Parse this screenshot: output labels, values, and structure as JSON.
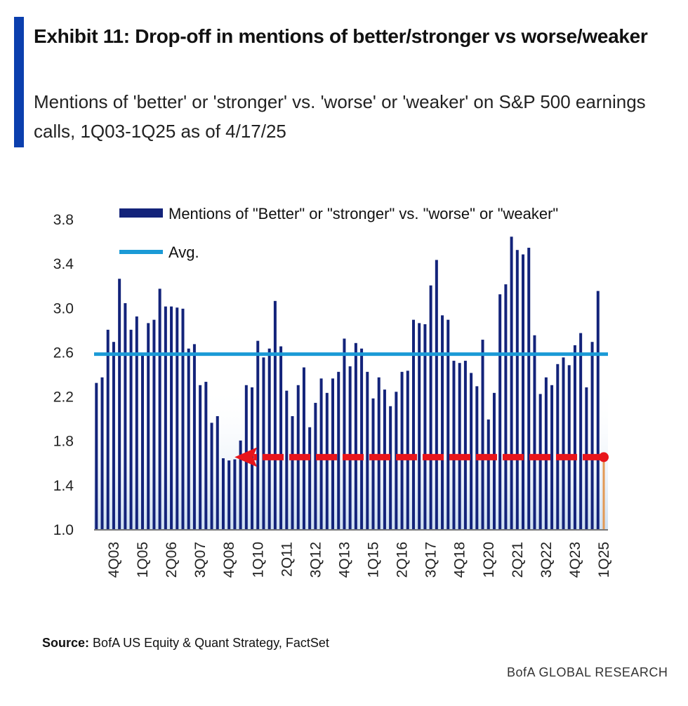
{
  "header": {
    "title": "Exhibit 11: Drop-off in mentions of better/stronger vs worse/weaker",
    "subtitle": "Mentions of 'better' or 'stronger' vs. 'worse' or 'weaker' on S&P 500 earnings calls, 1Q03-1Q25 as of 4/17/25"
  },
  "footer": {
    "source_label": "Source:",
    "source_text": "BofA US Equity & Quant Strategy, FactSet",
    "brand": "BofA GLOBAL RESEARCH"
  },
  "colors": {
    "accent": "#0b3fae",
    "bars": "#13237a",
    "avg_line": "#1b9ad6",
    "arrow": "#e8151b",
    "latest_bar": "#e39a55"
  },
  "chart_data": {
    "type": "bar",
    "title": "",
    "xlabel": "",
    "ylabel": "",
    "ylim": [
      1.0,
      3.8
    ],
    "yticks": [
      "1.0",
      "1.4",
      "1.8",
      "2.2",
      "2.6",
      "3.0",
      "3.4",
      "3.8"
    ],
    "grid": false,
    "legend_placement": "top-left",
    "legend": [
      "Mentions of \"Better\" or \"stronger\" vs. \"worse\" or \"weaker\"",
      "Avg."
    ],
    "xtick_labels": [
      "4Q03",
      "1Q05",
      "2Q06",
      "3Q07",
      "4Q08",
      "1Q10",
      "2Q11",
      "3Q12",
      "4Q13",
      "1Q15",
      "2Q16",
      "3Q17",
      "4Q18",
      "1Q20",
      "2Q21",
      "3Q22",
      "4Q23",
      "1Q25"
    ],
    "categories": [
      "1Q03",
      "2Q03",
      "3Q03",
      "4Q03",
      "1Q04",
      "2Q04",
      "3Q04",
      "4Q04",
      "1Q05",
      "2Q05",
      "3Q05",
      "4Q05",
      "1Q06",
      "2Q06",
      "3Q06",
      "4Q06",
      "1Q07",
      "2Q07",
      "3Q07",
      "4Q07",
      "1Q08",
      "2Q08",
      "3Q08",
      "4Q08",
      "1Q09",
      "2Q09",
      "3Q09",
      "4Q09",
      "1Q10",
      "2Q10",
      "3Q10",
      "4Q10",
      "1Q11",
      "2Q11",
      "3Q11",
      "4Q11",
      "1Q12",
      "2Q12",
      "3Q12",
      "4Q12",
      "1Q13",
      "2Q13",
      "3Q13",
      "4Q13",
      "1Q14",
      "2Q14",
      "3Q14",
      "4Q14",
      "1Q15",
      "2Q15",
      "3Q15",
      "4Q15",
      "1Q16",
      "2Q16",
      "3Q16",
      "4Q16",
      "1Q17",
      "2Q17",
      "3Q17",
      "4Q17",
      "1Q18",
      "2Q18",
      "3Q18",
      "4Q18",
      "1Q19",
      "2Q19",
      "3Q19",
      "4Q19",
      "1Q20",
      "2Q20",
      "3Q20",
      "4Q20",
      "1Q21",
      "2Q21",
      "3Q21",
      "4Q21",
      "1Q22",
      "2Q22",
      "3Q22",
      "4Q22",
      "1Q23",
      "2Q23",
      "3Q23",
      "4Q23",
      "1Q24",
      "2Q24",
      "3Q24",
      "4Q24",
      "1Q25"
    ],
    "series": [
      {
        "name": "Mentions of \"Better\" or \"stronger\" vs. \"worse\" or \"weaker\"",
        "values": [
          2.32,
          2.37,
          2.8,
          2.69,
          3.26,
          3.04,
          2.8,
          2.92,
          2.57,
          2.86,
          2.89,
          3.17,
          3.01,
          3.01,
          3.0,
          2.99,
          2.63,
          2.67,
          2.3,
          2.33,
          1.96,
          2.02,
          1.64,
          1.62,
          1.63,
          1.8,
          2.3,
          2.28,
          2.7,
          2.55,
          2.63,
          3.06,
          2.65,
          2.25,
          2.02,
          2.3,
          2.46,
          1.92,
          2.14,
          2.36,
          2.23,
          2.36,
          2.42,
          2.72,
          2.47,
          2.68,
          2.63,
          2.42,
          2.18,
          2.37,
          2.26,
          2.11,
          2.24,
          2.42,
          2.43,
          2.89,
          2.86,
          2.85,
          3.2,
          3.43,
          2.93,
          2.89,
          2.52,
          2.5,
          2.52,
          2.41,
          2.29,
          2.71,
          1.99,
          2.23,
          3.12,
          3.21,
          3.64,
          3.52,
          3.48,
          3.54,
          2.75,
          2.22,
          2.37,
          2.3,
          2.49,
          2.55,
          2.48,
          2.66,
          2.77,
          2.28,
          2.69,
          3.15,
          1.65
        ]
      },
      {
        "name": "Avg.",
        "value": 2.58
      }
    ],
    "annotations": [
      {
        "type": "dashed-arrow",
        "direction": "left",
        "y": 1.65,
        "from": "1Q25",
        "to": "4Q08"
      }
    ]
  }
}
